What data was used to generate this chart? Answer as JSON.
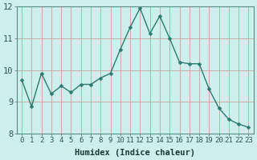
{
  "x": [
    0,
    1,
    2,
    3,
    4,
    5,
    6,
    7,
    8,
    9,
    10,
    11,
    12,
    13,
    14,
    15,
    16,
    17,
    18,
    19,
    20,
    21,
    22,
    23
  ],
  "y": [
    9.7,
    8.85,
    9.9,
    9.25,
    9.5,
    9.3,
    9.55,
    9.55,
    9.75,
    9.9,
    10.65,
    11.35,
    11.95,
    11.15,
    11.7,
    11.0,
    10.25,
    10.2,
    10.2,
    9.4,
    8.8,
    8.45,
    8.3,
    8.2
  ],
  "line_color": "#2d7a6e",
  "marker": "D",
  "marker_size": 2.5,
  "bg_color": "#cef0ec",
  "grid_color_major": "#c8a0a0",
  "grid_color_minor": "#c8a0a0",
  "xlabel": "Humidex (Indice chaleur)",
  "ylim": [
    8,
    12
  ],
  "xlim": [
    -0.5,
    23.5
  ],
  "yticks": [
    8,
    9,
    10,
    11,
    12
  ],
  "xticks": [
    0,
    1,
    2,
    3,
    4,
    5,
    6,
    7,
    8,
    9,
    10,
    11,
    12,
    13,
    14,
    15,
    16,
    17,
    18,
    19,
    20,
    21,
    22,
    23
  ],
  "tick_color": "#2d5a54",
  "tick_fontsize": 6.5,
  "label_fontsize": 7.5,
  "label_color": "#1a3a34"
}
